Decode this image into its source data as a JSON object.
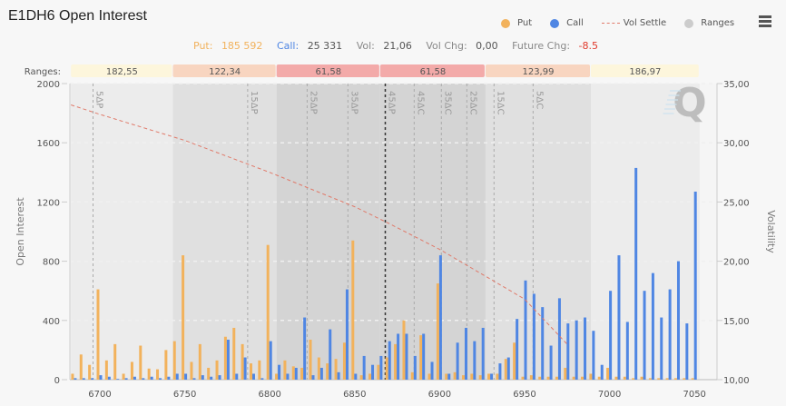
{
  "header": {
    "title": "E1DH6 Open Interest",
    "menu_icon": "hamburger-menu-icon"
  },
  "legend": {
    "items": [
      {
        "label": "Put",
        "color": "#f2b25c",
        "type": "dot"
      },
      {
        "label": "Call",
        "color": "#4f86e3",
        "type": "dot"
      },
      {
        "label": "Vol Settle",
        "color": "#e07a6a",
        "type": "dash"
      },
      {
        "label": "Ranges",
        "color": "#cccccc",
        "type": "dot"
      }
    ]
  },
  "stats": {
    "put_label": "Put:",
    "put_value": "185 592",
    "call_label": "Call:",
    "call_value": "25 331",
    "vol_label": "Vol:",
    "vol_value": "21,06",
    "volchg_label": "Vol Chg:",
    "volchg_value": "0,00",
    "futchg_label": "Future Chg:",
    "futchg_value": "-8.5",
    "colors": {
      "put": "#f2b25c",
      "call": "#4f86e3",
      "neutral": "#888888",
      "negative": "#e0392b"
    }
  },
  "ranges": {
    "label": "Ranges:",
    "values": [
      "182,55",
      "122,34",
      "61,58",
      "61,58",
      "123,99",
      "186,97"
    ],
    "colors": [
      "#fdf6dc",
      "#f8d5c0",
      "#f3aaa9",
      "#f3aaa9",
      "#f8d5c0",
      "#fdf6dc"
    ]
  },
  "chart_data": {
    "type": "bar",
    "title": "E1DH6 Open Interest",
    "xlabel": "",
    "ylabel": "Open Interest",
    "y2label": "Volatility",
    "ylim": [
      0,
      2000
    ],
    "y2lim": [
      10,
      35
    ],
    "yticks": [
      "0",
      "400",
      "800",
      "1200",
      "1600",
      "2000"
    ],
    "y2ticks": [
      "10,00",
      "15,00",
      "20,00",
      "25,00",
      "30,00",
      "35,00"
    ],
    "xticks": [
      "6700",
      "6750",
      "6800",
      "6850",
      "6900",
      "6950",
      "7000",
      "7050"
    ],
    "grid": true,
    "legend_position": "top-right",
    "x": [
      6685,
      6690,
      6695,
      6700,
      6705,
      6710,
      6715,
      6720,
      6725,
      6730,
      6735,
      6740,
      6745,
      6750,
      6755,
      6760,
      6765,
      6770,
      6775,
      6780,
      6785,
      6790,
      6795,
      6800,
      6805,
      6810,
      6815,
      6820,
      6825,
      6830,
      6835,
      6840,
      6845,
      6850,
      6855,
      6860,
      6865,
      6870,
      6875,
      6880,
      6885,
      6890,
      6895,
      6900,
      6905,
      6910,
      6915,
      6920,
      6925,
      6930,
      6935,
      6940,
      6945,
      6950,
      6955,
      6960,
      6965,
      6970,
      6975,
      6980,
      6985,
      6990,
      6995,
      7000,
      7005,
      7010,
      7015,
      7020,
      7025,
      7030,
      7035,
      7040,
      7045,
      7050
    ],
    "series": [
      {
        "name": "Put",
        "color": "#f2b25c",
        "values": [
          40,
          170,
          100,
          610,
          130,
          240,
          40,
          120,
          230,
          75,
          70,
          200,
          260,
          840,
          120,
          240,
          80,
          130,
          290,
          350,
          240,
          110,
          130,
          910,
          40,
          130,
          90,
          80,
          270,
          150,
          110,
          140,
          250,
          940,
          30,
          40,
          100,
          150,
          240,
          400,
          50,
          300,
          40,
          650,
          40,
          50,
          30,
          40,
          30,
          40,
          40,
          140,
          250,
          20,
          30,
          20,
          20,
          20,
          80,
          20,
          20,
          40,
          20,
          80,
          20,
          20,
          10,
          20,
          10,
          10,
          10,
          10,
          10,
          10
        ]
      },
      {
        "name": "Call",
        "color": "#4f86e3",
        "values": [
          10,
          10,
          10,
          30,
          20,
          5,
          10,
          20,
          10,
          20,
          10,
          20,
          40,
          40,
          10,
          30,
          20,
          30,
          270,
          40,
          150,
          40,
          10,
          260,
          100,
          40,
          80,
          420,
          30,
          80,
          340,
          50,
          610,
          40,
          160,
          100,
          160,
          260,
          310,
          310,
          160,
          310,
          120,
          840,
          40,
          250,
          350,
          260,
          350,
          40,
          110,
          150,
          410,
          670,
          580,
          490,
          230,
          550,
          380,
          400,
          420,
          330,
          100,
          600,
          840,
          390,
          1430,
          600,
          720,
          420,
          610,
          800,
          380,
          1270
        ]
      },
      {
        "name": "Vol Settle",
        "type": "line",
        "axis": "y2",
        "color": "#e07a6a",
        "points": [
          [
            6683,
            33.2
          ],
          [
            6700,
            32.4
          ],
          [
            6750,
            30.2
          ],
          [
            6800,
            27.5
          ],
          [
            6850,
            24.6
          ],
          [
            6870,
            23.2
          ],
          [
            6900,
            21.0
          ],
          [
            6950,
            16.8
          ],
          [
            6975,
            13.0
          ]
        ]
      }
    ],
    "ranges": [
      {
        "from": 6683,
        "to": 6743,
        "value": "182,55"
      },
      {
        "from": 6743,
        "to": 6804,
        "value": "122,34"
      },
      {
        "from": 6804,
        "to": 6865,
        "value": "61,58"
      },
      {
        "from": 6865,
        "to": 6927,
        "value": "61,58"
      },
      {
        "from": 6927,
        "to": 6989,
        "value": "123,99"
      },
      {
        "from": 6989,
        "to": 7053,
        "value": "186,97"
      }
    ],
    "delta_markers": [
      {
        "label": "5ΔP",
        "x": 6696
      },
      {
        "label": "15ΔP",
        "x": 6787
      },
      {
        "label": "25ΔP",
        "x": 6822
      },
      {
        "label": "35ΔP",
        "x": 6846
      },
      {
        "label": "45ΔP",
        "x": 6868,
        "highlight": true
      },
      {
        "label": "45ΔC",
        "x": 6885
      },
      {
        "label": "35ΔC",
        "x": 6901
      },
      {
        "label": "25ΔC",
        "x": 6916
      },
      {
        "label": "15ΔC",
        "x": 6932
      },
      {
        "label": "5ΔC",
        "x": 6955
      }
    ]
  }
}
